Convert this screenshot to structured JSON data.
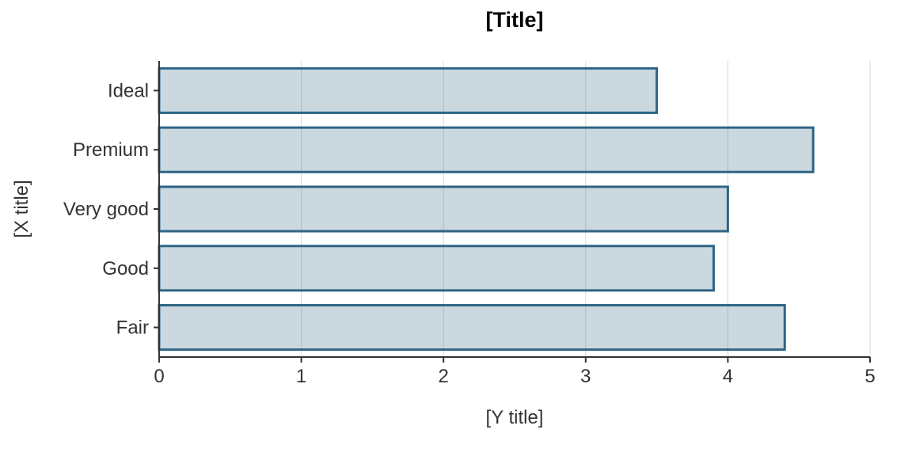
{
  "chart_data": {
    "type": "bar",
    "orientation": "horizontal",
    "title": "[Title]",
    "xlabel": "[Y title]",
    "ylabel": "[X title]",
    "categories": [
      "Fair",
      "Good",
      "Very good",
      "Premium",
      "Ideal"
    ],
    "values": [
      4.4,
      3.9,
      4.0,
      4.6,
      3.5
    ],
    "xlim": [
      0,
      5
    ],
    "x_ticks": [
      "0",
      "1",
      "2",
      "3",
      "4",
      "5"
    ],
    "grid": "vertical",
    "legend": "none",
    "colors": {
      "bar_fill": "#2f6484",
      "bar_stroke": "#2f6484",
      "axis": "#333333",
      "grid": "#d9d9d9"
    }
  }
}
